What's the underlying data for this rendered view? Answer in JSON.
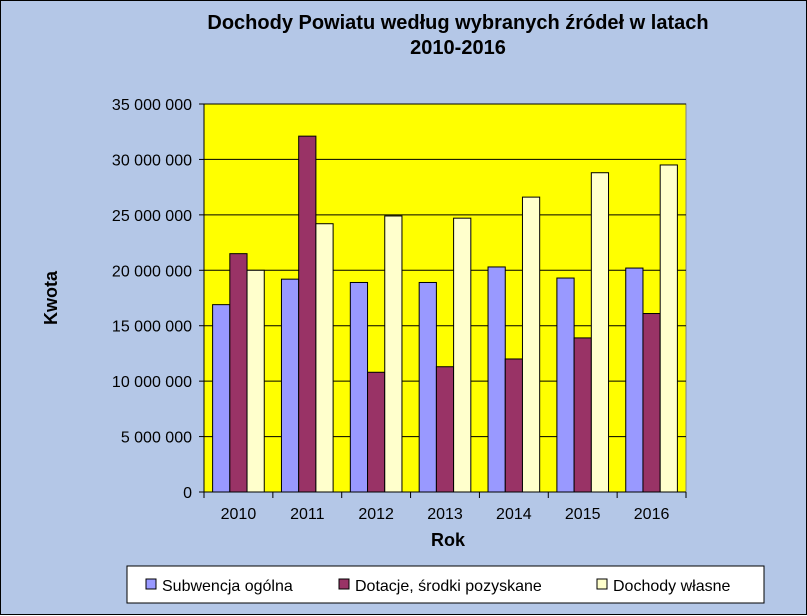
{
  "chart_data": {
    "type": "bar",
    "title_lines": [
      "Dochody  Powiatu według wybranych  źródeł  w latach",
      "2010-2016"
    ],
    "xlabel": "Rok",
    "ylabel": "Kwota",
    "categories": [
      "2010",
      "2011",
      "2012",
      "2013",
      "2014",
      "2015",
      "2016"
    ],
    "ylim": [
      0,
      35000000
    ],
    "yticks": [
      0,
      5000000,
      10000000,
      15000000,
      20000000,
      25000000,
      30000000,
      35000000
    ],
    "ytick_labels": [
      "0",
      "5 000 000",
      "10 000 000",
      "15 000 000",
      "20 000 000",
      "25 000 000",
      "30 000 000",
      "35 000 000"
    ],
    "grid": true,
    "legend_position": "bottom",
    "series": [
      {
        "name": "Subwencja ogólna",
        "color": "#9999ff",
        "values": [
          16900000,
          19200000,
          18900000,
          18900000,
          20300000,
          19300000,
          20200000
        ]
      },
      {
        "name": "Dotacje, środki pozyskane",
        "color": "#993366",
        "values": [
          21500000,
          32100000,
          10800000,
          11300000,
          12000000,
          13900000,
          16100000
        ]
      },
      {
        "name": "Dochody własne",
        "color": "#ffffcc",
        "values": [
          20000000,
          24200000,
          24900000,
          24700000,
          26600000,
          28800000,
          29500000
        ]
      }
    ],
    "plot_background": "#ffff00",
    "chart_background": "#b4c7e7"
  }
}
